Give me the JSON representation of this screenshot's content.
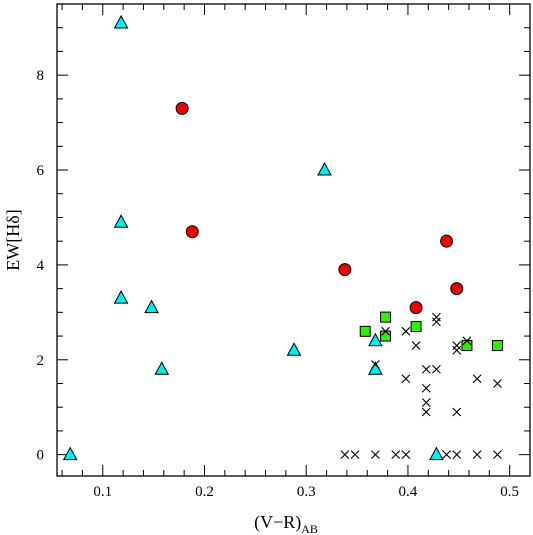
{
  "chart_data": {
    "type": "scatter",
    "xlabel_main": "(V−R)",
    "xlabel_sub": "AB",
    "ylabel": "EW[Hδ]",
    "xlim": [
      0.055,
      0.52
    ],
    "ylim": [
      -0.45,
      9.5
    ],
    "xticks": [
      0.1,
      0.2,
      0.3,
      0.4,
      0.5
    ],
    "xtick_labels": [
      "0.1",
      "0.2",
      "0.3",
      "0.4",
      "0.5"
    ],
    "yticks": [
      0,
      2,
      4,
      6,
      8
    ],
    "ytick_labels": [
      "0",
      "2",
      "4",
      "6",
      "8"
    ],
    "grid": false,
    "series": [
      {
        "marker": "circle",
        "color": "#ee0000",
        "points": [
          [
            0.178,
            7.3
          ],
          [
            0.188,
            4.7
          ],
          [
            0.338,
            3.9
          ],
          [
            0.408,
            3.1
          ],
          [
            0.438,
            4.5
          ],
          [
            0.448,
            3.5
          ]
        ]
      },
      {
        "marker": "triangle",
        "color": "#00eeee",
        "points": [
          [
            0.068,
            0.0
          ],
          [
            0.118,
            9.1
          ],
          [
            0.118,
            4.9
          ],
          [
            0.118,
            3.3
          ],
          [
            0.148,
            3.1
          ],
          [
            0.158,
            1.8
          ],
          [
            0.288,
            2.2
          ],
          [
            0.318,
            6.0
          ],
          [
            0.368,
            2.4
          ],
          [
            0.368,
            1.8
          ],
          [
            0.428,
            0.0
          ]
        ]
      },
      {
        "marker": "square",
        "color": "#33ee00",
        "points": [
          [
            0.358,
            2.6
          ],
          [
            0.378,
            2.9
          ],
          [
            0.378,
            2.5
          ],
          [
            0.408,
            2.7
          ],
          [
            0.458,
            2.3
          ],
          [
            0.488,
            2.3
          ]
        ]
      },
      {
        "marker": "cross",
        "color": "#000000",
        "points": [
          [
            0.338,
            0.0
          ],
          [
            0.348,
            0.0
          ],
          [
            0.368,
            0.0
          ],
          [
            0.388,
            0.0
          ],
          [
            0.398,
            0.0
          ],
          [
            0.438,
            0.0
          ],
          [
            0.448,
            0.0
          ],
          [
            0.468,
            0.0
          ],
          [
            0.488,
            0.0
          ],
          [
            0.368,
            1.9
          ],
          [
            0.378,
            2.6
          ],
          [
            0.398,
            2.6
          ],
          [
            0.408,
            2.3
          ],
          [
            0.398,
            1.6
          ],
          [
            0.418,
            1.8
          ],
          [
            0.418,
            1.4
          ],
          [
            0.418,
            1.1
          ],
          [
            0.418,
            0.9
          ],
          [
            0.428,
            2.9
          ],
          [
            0.428,
            2.8
          ],
          [
            0.428,
            1.8
          ],
          [
            0.448,
            2.3
          ],
          [
            0.448,
            2.2
          ],
          [
            0.448,
            0.9
          ],
          [
            0.458,
            2.4
          ],
          [
            0.468,
            1.6
          ],
          [
            0.488,
            1.5
          ]
        ]
      }
    ]
  }
}
